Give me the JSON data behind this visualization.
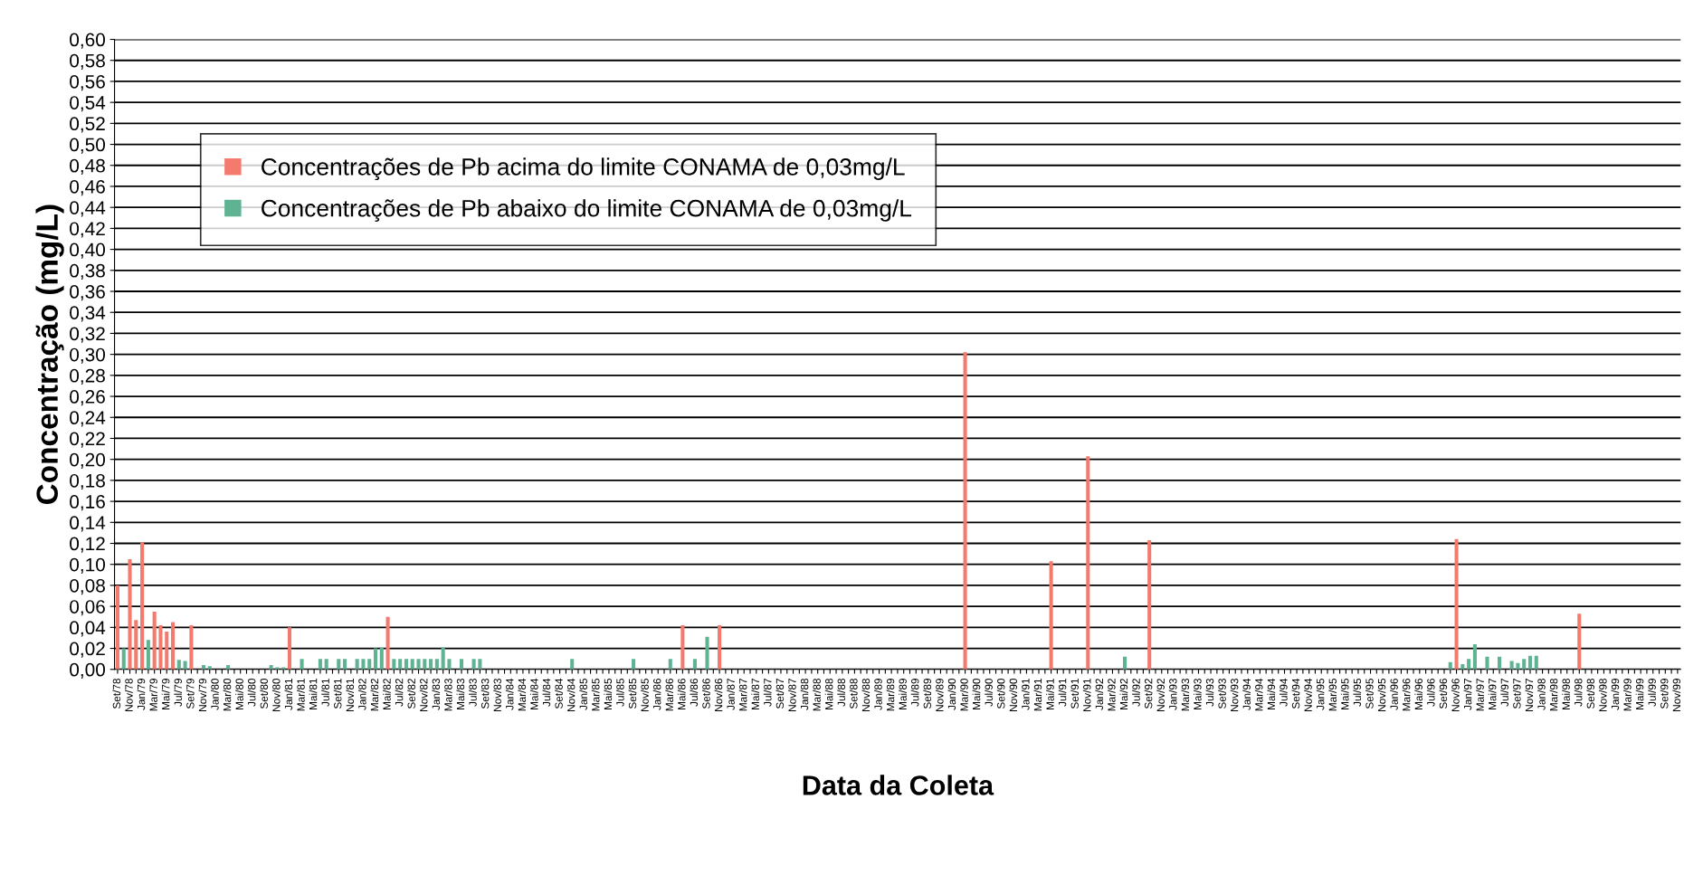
{
  "chart_data": {
    "type": "bar",
    "xlabel": "Data da Coleta",
    "ylabel": "Concentração (mg/L)",
    "categories": [
      "Set/78",
      null,
      "Nov/78",
      null,
      "Jan/79",
      null,
      "Mar/79",
      null,
      "Mai/79",
      null,
      "Jul/79",
      null,
      "Set/79",
      null,
      "Nov/79",
      null,
      "Jan/80",
      null,
      "Mar/80",
      null,
      "Mai/80",
      null,
      "Jul/80",
      null,
      "Set/80",
      null,
      "Nov/80",
      null,
      "Jan/81",
      null,
      "Mar/81",
      null,
      "Mai/81",
      null,
      "Jul/81",
      null,
      "Set/81",
      null,
      "Nov/81",
      null,
      "Jan/82",
      null,
      "Mar/82",
      null,
      "Mai/82",
      null,
      "Jul/82",
      null,
      "Set/82",
      null,
      "Nov/82",
      null,
      "Jan/83",
      null,
      "Mar/83",
      null,
      "Mai/83",
      null,
      "Jul/83",
      null,
      "Set/83",
      null,
      "Nov/83",
      null,
      "Jan/84",
      null,
      "Mar/84",
      null,
      "Mai/84",
      null,
      "Jul/84",
      null,
      "Set/84",
      null,
      "Nov/84",
      null,
      "Jan/85",
      null,
      "Mar/85",
      null,
      "Mai/85",
      null,
      "Jul/85",
      null,
      "Set/85",
      null,
      "Nov/85",
      null,
      "Jan/86",
      null,
      "Mar/86",
      null,
      "Mai/86",
      null,
      "Jul/86",
      null,
      "Set/86",
      null,
      "Nov/86",
      null,
      "Jan/87",
      null,
      "Mar/87",
      null,
      "Mai/87",
      null,
      "Jul/87",
      null,
      "Set/87",
      null,
      "Nov/87",
      null,
      "Jan/88",
      null,
      "Mar/88",
      null,
      "Mai/88",
      null,
      "Jul/88",
      null,
      "Set/88",
      null,
      "Nov/88",
      null,
      "Jan/89",
      null,
      "Mar/89",
      null,
      "Mai/89",
      null,
      "Jul/89",
      null,
      "Set/89",
      null,
      "Nov/89",
      null,
      "Jan/90",
      null,
      "Mar/90",
      null,
      "Mai/90",
      null,
      "Jul/90",
      null,
      "Set/90",
      null,
      "Nov/90",
      null,
      "Jan/91",
      null,
      "Mar/91",
      null,
      "Mai/91",
      null,
      "Jul/91",
      null,
      "Set/91",
      null,
      "Nov/91",
      null,
      "Jan/92",
      null,
      "Mar/92",
      null,
      "Mai/92",
      null,
      "Jul/92",
      null,
      "Set/92",
      null,
      "Nov/92",
      null,
      "Jan/93",
      null,
      "Mar/93",
      null,
      "Mai/93",
      null,
      "Jul/93",
      null,
      "Set/93",
      null,
      "Nov/93",
      null,
      "Jan/94",
      null,
      "Mar/94",
      null,
      "Mai/94",
      null,
      "Jul/94",
      null,
      "Set/94",
      null,
      "Nov/94",
      null,
      "Jan/95",
      null,
      "Mar/95",
      null,
      "Mai/95",
      null,
      "Jul/95",
      null,
      "Set/95",
      null,
      "Nov/95",
      null,
      "Jan/96",
      null,
      "Mar/96",
      null,
      "Mai/96",
      null,
      "Jul/96",
      null,
      "Set/96",
      null,
      "Nov/96",
      null,
      "Jan/97",
      null,
      "Mar/97",
      null,
      "Mai/97",
      null,
      "Jul/97",
      null,
      "Set/97",
      null,
      "Nov/97",
      null,
      "Jan/98",
      null,
      "Mar/98",
      null,
      "Mai/98",
      null,
      "Jul/98",
      null,
      "Set/98",
      null,
      "Nov/98",
      null,
      "Jan/99",
      null,
      "Mar/99",
      null,
      "Mai/99",
      null,
      "Jul/99",
      null,
      "Set/99",
      null,
      "Nov/99"
    ],
    "series": [
      {
        "name": "Concentrações de Pb acima do limite CONAMA de 0,03mg/L",
        "color": "#f47a6e",
        "values": [
          0.08,
          null,
          0.105,
          0.047,
          0.121,
          null,
          0.055,
          0.042,
          0.036,
          0.045,
          null,
          null,
          0.042,
          null,
          null,
          null,
          null,
          null,
          null,
          null,
          null,
          null,
          null,
          null,
          null,
          null,
          null,
          null,
          0.04,
          null,
          null,
          null,
          null,
          null,
          null,
          null,
          null,
          null,
          null,
          null,
          null,
          null,
          null,
          null,
          0.05,
          null,
          null,
          null,
          null,
          null,
          null,
          null,
          null,
          null,
          null,
          null,
          null,
          null,
          null,
          null,
          null,
          null,
          null,
          null,
          null,
          null,
          null,
          null,
          null,
          null,
          null,
          null,
          null,
          null,
          null,
          null,
          null,
          null,
          null,
          null,
          null,
          null,
          null,
          null,
          null,
          null,
          null,
          null,
          null,
          null,
          null,
          null,
          0.042,
          null,
          null,
          null,
          null,
          null,
          0.042,
          null,
          null,
          null,
          null,
          null,
          null,
          null,
          null,
          null,
          null,
          null,
          null,
          null,
          null,
          null,
          null,
          null,
          null,
          null,
          null,
          null,
          null,
          null,
          null,
          null,
          null,
          null,
          null,
          null,
          null,
          null,
          null,
          null,
          null,
          null,
          null,
          null,
          null,
          null,
          0.302,
          null,
          null,
          null,
          null,
          null,
          null,
          null,
          null,
          null,
          null,
          null,
          null,
          null,
          0.103,
          null,
          null,
          null,
          null,
          null,
          0.203,
          null,
          null,
          null,
          null,
          null,
          null,
          null,
          null,
          null,
          0.123,
          null,
          null,
          null,
          null,
          null,
          null,
          null,
          null,
          null,
          null,
          null,
          null,
          null,
          null,
          null,
          null,
          null,
          null,
          null,
          null,
          null,
          null,
          null,
          null,
          null,
          null,
          null,
          null,
          null,
          null,
          null,
          null,
          null,
          null,
          null,
          null,
          null,
          null,
          null,
          null,
          null,
          null,
          null,
          null,
          null,
          null,
          null,
          null,
          null,
          0.124,
          null,
          null,
          null,
          null,
          null,
          null,
          null,
          null,
          null,
          null,
          null,
          null,
          null,
          null,
          null,
          null,
          null,
          null,
          null,
          0.053,
          null,
          null,
          null,
          null,
          null,
          null,
          null,
          null,
          null,
          null,
          null,
          null,
          null,
          null,
          null,
          null
        ]
      },
      {
        "name": "Concentrações de Pb abaixo do limite CONAMA de 0,03mg/L",
        "color": "#5fb393",
        "values": [
          null,
          0.02,
          null,
          null,
          null,
          0.028,
          null,
          null,
          null,
          null,
          0.009,
          0.008,
          null,
          null,
          0.004,
          0.003,
          null,
          null,
          0.004,
          null,
          null,
          null,
          null,
          null,
          null,
          0.004,
          0.002,
          0.002,
          null,
          null,
          0.01,
          null,
          null,
          0.01,
          0.01,
          null,
          0.01,
          0.01,
          null,
          0.01,
          0.01,
          0.01,
          0.02,
          0.021,
          null,
          0.01,
          0.01,
          0.01,
          0.01,
          0.01,
          0.01,
          0.01,
          0.01,
          0.021,
          0.01,
          null,
          0.01,
          null,
          0.01,
          0.01,
          null,
          null,
          null,
          null,
          null,
          null,
          null,
          null,
          null,
          null,
          null,
          null,
          null,
          null,
          0.01,
          null,
          null,
          null,
          null,
          null,
          null,
          null,
          null,
          null,
          0.01,
          null,
          null,
          null,
          null,
          null,
          0.01,
          null,
          null,
          null,
          0.01,
          null,
          0.031,
          null,
          null,
          null,
          null,
          null,
          null,
          null,
          null,
          null,
          null,
          null,
          null,
          null,
          null,
          null,
          null,
          null,
          null,
          null,
          null,
          null,
          null,
          null,
          null,
          null,
          null,
          null,
          null,
          null,
          null,
          null,
          null,
          null,
          null,
          null,
          null,
          null,
          null,
          null,
          null,
          null,
          null,
          null,
          null,
          null,
          null,
          null,
          null,
          null,
          null,
          null,
          null,
          null,
          null,
          null,
          null,
          null,
          null,
          null,
          null,
          null,
          null,
          null,
          null,
          null,
          null,
          null,
          0.012,
          null,
          null,
          null,
          null,
          null,
          null,
          null,
          null,
          null,
          null,
          null,
          null,
          null,
          null,
          null,
          null,
          null,
          null,
          null,
          null,
          null,
          null,
          null,
          null,
          null,
          null,
          null,
          null,
          null,
          null,
          null,
          null,
          null,
          null,
          null,
          null,
          null,
          null,
          null,
          null,
          null,
          null,
          null,
          null,
          null,
          null,
          null,
          null,
          null,
          null,
          null,
          null,
          0.007,
          null,
          0.005,
          0.01,
          0.024,
          null,
          0.012,
          null,
          0.012,
          null,
          0.008,
          0.006,
          0.01,
          0.013,
          0.013,
          null,
          null,
          null,
          null,
          null,
          null,
          null,
          null,
          null,
          null,
          null,
          null,
          null,
          null,
          null,
          null,
          null,
          null,
          null,
          null,
          null,
          null,
          null
        ]
      }
    ],
    "ylim": [
      0,
      0.6
    ],
    "yticks": [
      {
        "value": 0,
        "label": "0,00"
      },
      {
        "value": 0.02,
        "label": "0,02"
      },
      {
        "value": 0.04,
        "label": "0,04"
      },
      {
        "value": 0.06,
        "label": "0,06"
      },
      {
        "value": 0.08,
        "label": "0,08"
      },
      {
        "value": 0.1,
        "label": "0,10"
      },
      {
        "value": 0.12,
        "label": "0,12"
      },
      {
        "value": 0.14,
        "label": "0,14"
      },
      {
        "value": 0.16,
        "label": "0,16"
      },
      {
        "value": 0.18,
        "label": "0,18"
      },
      {
        "value": 0.2,
        "label": "0,20"
      },
      {
        "value": 0.22,
        "label": "0,22"
      },
      {
        "value": 0.24,
        "label": "0,24"
      },
      {
        "value": 0.26,
        "label": "0,26"
      },
      {
        "value": 0.28,
        "label": "0,28"
      },
      {
        "value": 0.3,
        "label": "0,30"
      },
      {
        "value": 0.32,
        "label": "0,32"
      },
      {
        "value": 0.34,
        "label": "0,34"
      },
      {
        "value": 0.36,
        "label": "0,36"
      },
      {
        "value": 0.38,
        "label": "0,38"
      },
      {
        "value": 0.4,
        "label": "0,40"
      },
      {
        "value": 0.42,
        "label": "0,42"
      },
      {
        "value": 0.44,
        "label": "0,44"
      },
      {
        "value": 0.46,
        "label": "0,46"
      },
      {
        "value": 0.48,
        "label": "0,48"
      },
      {
        "value": 0.5,
        "label": "0,50"
      },
      {
        "value": 0.52,
        "label": "0,52"
      },
      {
        "value": 0.54,
        "label": "0,54"
      },
      {
        "value": 0.56,
        "label": "0,56"
      },
      {
        "value": 0.58,
        "label": "0,58"
      },
      {
        "value": 0.6,
        "label": "0,60"
      }
    ],
    "grid": "y",
    "legend": "top left"
  }
}
